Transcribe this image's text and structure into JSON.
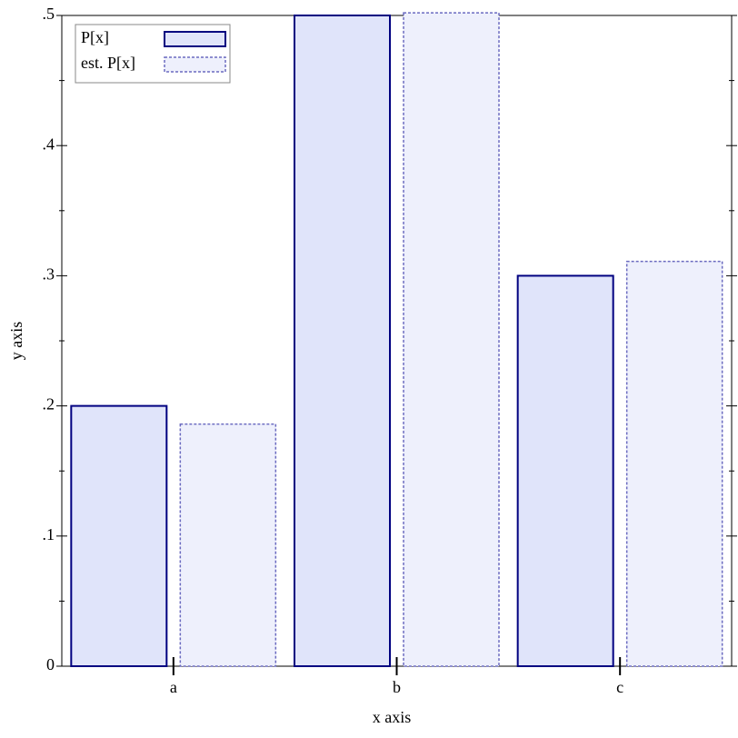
{
  "chart_data": {
    "type": "bar",
    "x_label": "x axis",
    "y_label": "y axis",
    "categories": [
      "a",
      "b",
      "c"
    ],
    "series": [
      {
        "name": "P[x]",
        "color": "#e0e4fa",
        "values": [
          0.2,
          0.5,
          0.3
        ]
      },
      {
        "name": "est. P[x]",
        "color": "#eef0fc",
        "values": [
          0.186,
          0.502,
          0.311
        ]
      }
    ],
    "ylim": [
      0,
      0.5
    ],
    "yticks": [
      {
        "value": 0,
        "label": "0"
      },
      {
        "value": 0.1,
        "label": ".1"
      },
      {
        "value": 0.2,
        "label": ".2"
      },
      {
        "value": 0.3,
        "label": ".3"
      },
      {
        "value": 0.4,
        "label": ".4"
      },
      {
        "value": 0.5,
        "label": ".5"
      }
    ],
    "legend": "top-left"
  }
}
